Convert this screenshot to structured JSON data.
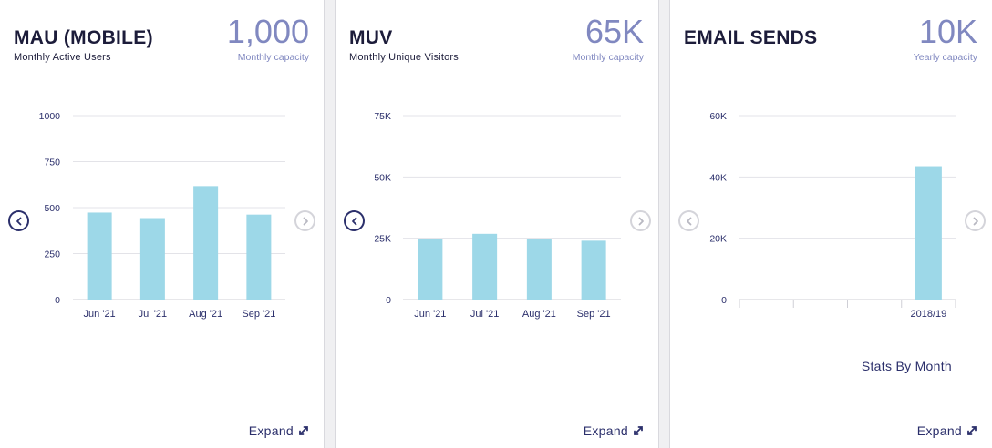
{
  "cards": [
    {
      "title": "MAU (MOBILE)",
      "subtitle": "Monthly Active Users",
      "capacity": "1,000",
      "capacity_label": "Monthly capacity",
      "expand_label": "Expand",
      "prev_active": true,
      "next_active": false
    },
    {
      "title": "MUV",
      "subtitle": "Monthly Unique Visitors",
      "capacity": "65K",
      "capacity_label": "Monthly capacity",
      "expand_label": "Expand",
      "prev_active": true,
      "next_active": false
    },
    {
      "title": "EMAIL SENDS",
      "subtitle": "",
      "capacity": "10K",
      "capacity_label": "Yearly capacity",
      "expand_label": "Expand",
      "stats_link": "Stats By Month",
      "prev_active": false,
      "next_active": false
    }
  ],
  "colors": {
    "bar": "#9dd8e8",
    "grid": "#e3e3e8",
    "accent": "#8088c0",
    "text": "#2b2f6b"
  },
  "icons": {
    "prev": "chevron-left-icon",
    "next": "chevron-right-icon",
    "expand": "expand-arrows-icon"
  },
  "chart_data": [
    {
      "type": "bar",
      "categories": [
        "Jun '21",
        "Jul '21",
        "Aug '21",
        "Sep '21"
      ],
      "values": [
        473,
        443,
        617,
        462
      ],
      "ylim": [
        0,
        1000
      ],
      "yticks": [
        0,
        250,
        500,
        750,
        1000
      ],
      "ytick_labels": [
        "0",
        "250",
        "500",
        "750",
        "1000"
      ],
      "grid": true
    },
    {
      "type": "bar",
      "categories": [
        "Jun '21",
        "Jul '21",
        "Aug '21",
        "Sep '21"
      ],
      "values": [
        24500,
        26800,
        24500,
        24000
      ],
      "ylim": [
        0,
        75000
      ],
      "yticks": [
        0,
        25000,
        50000,
        75000
      ],
      "ytick_labels": [
        "0",
        "25K",
        "50K",
        "75K"
      ],
      "grid": true
    },
    {
      "type": "bar",
      "categories": [
        "",
        "",
        "",
        "2018/19"
      ],
      "values": [
        0,
        0,
        0,
        43500
      ],
      "ylim": [
        0,
        60000
      ],
      "yticks": [
        0,
        20000,
        40000,
        60000
      ],
      "ytick_labels": [
        "0",
        "20K",
        "40K",
        "60K"
      ],
      "grid": true
    }
  ]
}
